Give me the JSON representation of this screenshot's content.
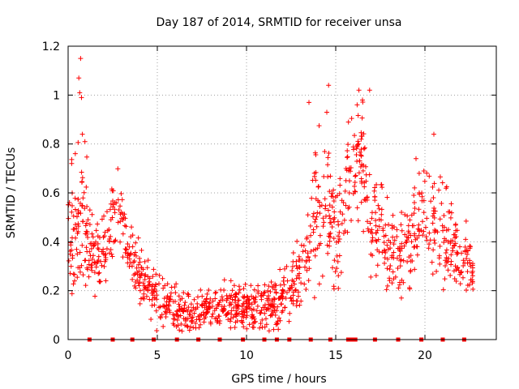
{
  "chart_data": {
    "type": "scatter",
    "title": "Day 187 of 2014, SRMTID for receiver unsa",
    "xlabel": "GPS time / hours",
    "ylabel": "SRMTID / TECUs",
    "xlim": [
      0,
      24
    ],
    "ylim": [
      0,
      1.2
    ],
    "xticks": [
      0,
      5,
      10,
      15,
      20
    ],
    "xtick_labels": [
      "0",
      "5",
      "10",
      "15",
      "20"
    ],
    "yticks": [
      0,
      0.2,
      0.4,
      0.6,
      0.8,
      1.0,
      1.2
    ],
    "ytick_labels": [
      "0",
      "0.2",
      "0.4",
      "0.6",
      "0.8",
      "1",
      "1.2"
    ],
    "grid": true,
    "marker": "plus",
    "color": "#ff0000",
    "zero_markers_x": [
      1.2,
      2.5,
      3.6,
      4.8,
      6.1,
      7.3,
      8.5,
      9.8,
      11.0,
      11.7,
      12.4,
      13.6,
      14.7,
      15.7,
      15.9,
      16.1,
      17.2,
      18.5,
      19.8,
      21.0,
      22.2
    ],
    "series": [
      {
        "name": "SRMTID",
        "color": "#ff0000",
        "profile_hours": [
          0,
          0.5,
          0.8,
          1.2,
          1.8,
          2.3,
          2.7,
          3.2,
          3.7,
          4.2,
          4.7,
          5.2,
          6.0,
          7.0,
          8.0,
          9.0,
          10.0,
          10.8,
          11.5,
          12.0,
          12.6,
          13.2,
          13.8,
          14.4,
          15.0,
          15.5,
          16.0,
          16.5,
          17.0,
          17.5,
          18.0,
          18.5,
          19.0,
          19.5,
          20.0,
          20.5,
          21.0,
          21.5,
          22.0,
          22.7
        ],
        "profile_mean": [
          0.42,
          0.5,
          0.58,
          0.36,
          0.34,
          0.42,
          0.56,
          0.42,
          0.3,
          0.26,
          0.2,
          0.16,
          0.13,
          0.1,
          0.12,
          0.15,
          0.12,
          0.12,
          0.14,
          0.18,
          0.22,
          0.32,
          0.52,
          0.58,
          0.44,
          0.56,
          0.72,
          0.72,
          0.48,
          0.46,
          0.36,
          0.33,
          0.38,
          0.45,
          0.52,
          0.46,
          0.42,
          0.4,
          0.32,
          0.28
        ],
        "profile_spread": [
          0.14,
          0.16,
          0.2,
          0.1,
          0.1,
          0.1,
          0.1,
          0.1,
          0.08,
          0.08,
          0.07,
          0.06,
          0.05,
          0.05,
          0.05,
          0.06,
          0.06,
          0.06,
          0.07,
          0.08,
          0.1,
          0.12,
          0.18,
          0.18,
          0.16,
          0.16,
          0.16,
          0.16,
          0.14,
          0.14,
          0.13,
          0.13,
          0.13,
          0.13,
          0.13,
          0.13,
          0.12,
          0.11,
          0.09,
          0.07
        ],
        "n_points": 1300,
        "outliers": [
          {
            "x": 0.7,
            "y": 1.15
          },
          {
            "x": 0.6,
            "y": 1.07
          },
          {
            "x": 0.65,
            "y": 1.01
          },
          {
            "x": 0.75,
            "y": 0.99
          },
          {
            "x": 0.8,
            "y": 0.84
          },
          {
            "x": 14.6,
            "y": 1.04
          },
          {
            "x": 14.5,
            "y": 0.93
          },
          {
            "x": 13.5,
            "y": 0.97
          },
          {
            "x": 16.3,
            "y": 1.02
          },
          {
            "x": 16.5,
            "y": 0.98
          },
          {
            "x": 16.2,
            "y": 0.96
          },
          {
            "x": 16.9,
            "y": 1.02
          },
          {
            "x": 20.5,
            "y": 0.84
          },
          {
            "x": 19.5,
            "y": 0.74
          },
          {
            "x": 0.2,
            "y": 0.72
          }
        ]
      }
    ]
  }
}
